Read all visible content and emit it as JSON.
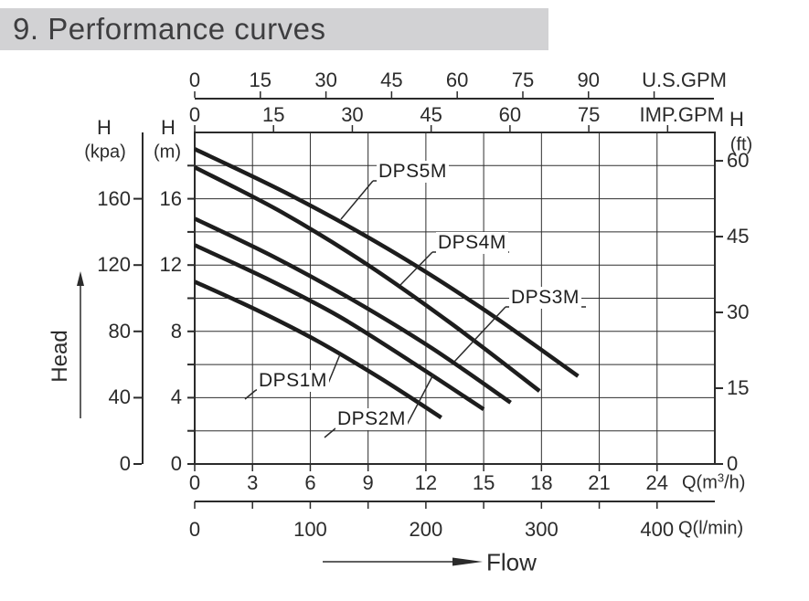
{
  "title": "9. Performance curves",
  "colors": {
    "ink": "#2b2b2b",
    "grid": "#2e2e2e",
    "curve": "#1d1d1d",
    "title_bar_bg": "#d2d2d4",
    "title_text": "#3e3e40"
  },
  "chart_data": {
    "type": "line",
    "title": "9. Performance curves",
    "grid": true,
    "head_axis_label": "Head",
    "flow_axis_label": "Flow",
    "series": [
      {
        "name": "DPS1M",
        "points_q_m3h_vs_head_m": [
          [
            0,
            11.0
          ],
          [
            3.2,
            9.3
          ],
          [
            6.4,
            7.4
          ],
          [
            9.6,
            5.2
          ],
          [
            12.8,
            2.8
          ]
        ]
      },
      {
        "name": "DPS2M",
        "points_q_m3h_vs_head_m": [
          [
            0,
            13.2
          ],
          [
            3.7,
            11.2
          ],
          [
            7.5,
            8.9
          ],
          [
            11.2,
            6.2
          ],
          [
            15.0,
            3.3
          ]
        ]
      },
      {
        "name": "DPS3M",
        "points_q_m3h_vs_head_m": [
          [
            0,
            14.8
          ],
          [
            4.1,
            12.5
          ],
          [
            8.2,
            9.9
          ],
          [
            12.3,
            7.0
          ],
          [
            16.4,
            3.7
          ]
        ]
      },
      {
        "name": "DPS4M",
        "points_q_m3h_vs_head_m": [
          [
            0,
            17.9
          ],
          [
            4.5,
            15.2
          ],
          [
            9.0,
            12.0
          ],
          [
            13.4,
            8.4
          ],
          [
            17.9,
            4.4
          ]
        ]
      },
      {
        "name": "DPS5M",
        "points_q_m3h_vs_head_m": [
          [
            0,
            19.0
          ],
          [
            5.0,
            16.2
          ],
          [
            10.0,
            13.0
          ],
          [
            14.9,
            9.4
          ],
          [
            19.9,
            5.3
          ]
        ]
      }
    ],
    "axes": {
      "x_m3h": {
        "unit": "Q(m³/h)",
        "unit_parts": [
          "Q(m",
          "3",
          "/h)"
        ],
        "ticks": [
          0,
          3,
          6,
          9,
          12,
          15,
          18,
          21,
          24
        ],
        "range": [
          0,
          27
        ],
        "grid_step": 3
      },
      "x_lmin": {
        "unit": "Q(l/min)",
        "ticks": [
          0,
          100,
          200,
          300,
          400
        ],
        "minor_step": 50,
        "minor_max": 400,
        "m3h_per_unit": 0.06
      },
      "x_usgpm": {
        "unit": "U.S.GPM",
        "ticks": [
          0,
          15,
          30,
          45,
          60,
          75,
          90
        ],
        "extra_tick": 105,
        "m3h_per_unit": 0.22712
      },
      "x_impgpm": {
        "unit": "IMP.GPM",
        "corner": "H",
        "ticks": [
          0,
          15,
          30,
          45,
          60,
          75
        ],
        "extra_tick": 90,
        "m3h_per_unit": 0.27276
      },
      "y_m": {
        "header": "H",
        "unit": "(m)",
        "ticks": [
          0,
          4,
          8,
          12,
          16
        ],
        "minor_step": 2,
        "range": [
          0,
          20
        ]
      },
      "y_kpa": {
        "header": "H",
        "unit": "(kpa)",
        "ticks": [
          0,
          40,
          80,
          120,
          160
        ],
        "m_per_unit": 0.1
      },
      "y_ft": {
        "header": "H",
        "unit": "(ft)",
        "ticks": [
          0,
          15,
          30,
          45,
          60
        ],
        "m_per_unit": 0.3048
      }
    }
  }
}
